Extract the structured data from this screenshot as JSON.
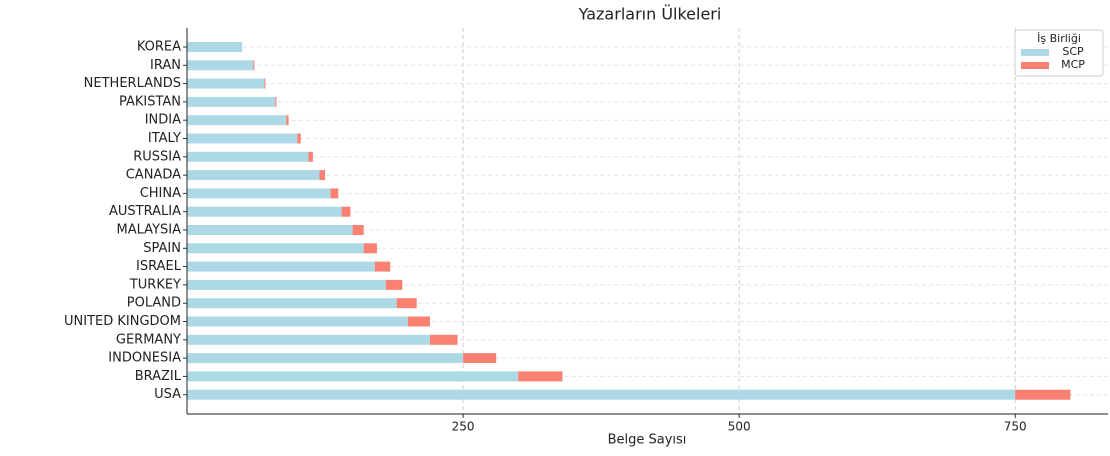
{
  "chart_data": {
    "type": "stacked_barh",
    "title": "Yazarların Ülkeleri",
    "xlabel": "Belge Sayısı",
    "legend_title": "İş Birliği",
    "legend_position": "upper right",
    "categories": [
      "KOREA",
      "IRAN",
      "NETHERLANDS",
      "PAKISTAN",
      "INDIA",
      "ITALY",
      "RUSSIA",
      "CANADA",
      "CHINA",
      "AUSTRALIA",
      "MALAYSIA",
      "SPAIN",
      "ISRAEL",
      "TURKEY",
      "POLAND",
      "UNITED KINGDOM",
      "GERMANY",
      "INDONESIA",
      "BRAZIL",
      "USA"
    ],
    "series": [
      {
        "name": "SCP",
        "color": "#add8e6",
        "values": [
          50,
          60,
          70,
          80,
          90,
          100,
          110,
          120,
          130,
          140,
          150,
          160,
          170,
          180,
          190,
          200,
          220,
          250,
          300,
          750
        ]
      },
      {
        "name": "MCP",
        "color": "#fa8072",
        "values": [
          0,
          1,
          1,
          1,
          2,
          3,
          4,
          5,
          7,
          8,
          10,
          12,
          14,
          15,
          18,
          20,
          25,
          30,
          40,
          50
        ]
      }
    ],
    "xlim": [
      0,
      834
    ],
    "xticks": [
      250,
      500,
      750
    ],
    "grid": true
  }
}
